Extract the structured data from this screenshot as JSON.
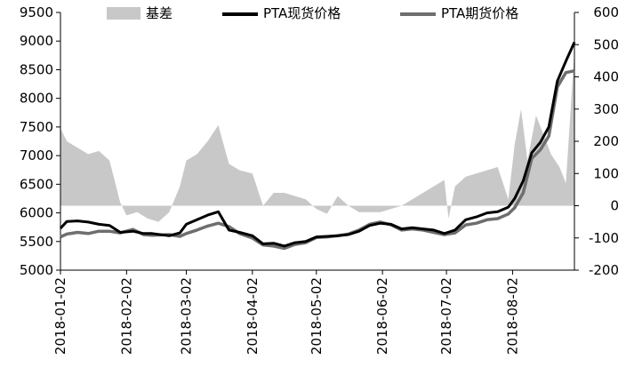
{
  "chart_data": {
    "type": "line",
    "title": "",
    "xlabel": "",
    "ylabel_left": "",
    "ylabel_right": "",
    "x_start": "2018-01-02",
    "x_end": "2018-08-31",
    "x_tick_labels": [
      "2018-01-02",
      "2018-02-02",
      "2018-03-02",
      "2018-04-02",
      "2018-05-02",
      "2018-06-02",
      "2018-07-02",
      "2018-08-02"
    ],
    "left_axis": {
      "ylim": [
        5000,
        9500
      ],
      "ticks": [
        5000,
        5500,
        6000,
        6500,
        7000,
        7500,
        8000,
        8500,
        9000,
        9500
      ]
    },
    "right_axis": {
      "ylim": [
        -200,
        600
      ],
      "ticks": [
        -200,
        -100,
        0,
        100,
        200,
        300,
        400,
        500,
        600
      ]
    },
    "legend": {
      "placement": "top",
      "entries": [
        "基差",
        "PTA现货价格",
        "PTA期货价格"
      ]
    },
    "grid": false,
    "colors": {
      "basis": "#c8c8c8",
      "spot": "#000000",
      "futures": "#6e6e6e"
    },
    "series": [
      {
        "name": "PTA现货价格",
        "axis": "left",
        "points": [
          [
            "2018-01-02",
            5730
          ],
          [
            "2018-01-05",
            5850
          ],
          [
            "2018-01-10",
            5860
          ],
          [
            "2018-01-15",
            5840
          ],
          [
            "2018-01-20",
            5800
          ],
          [
            "2018-01-25",
            5780
          ],
          [
            "2018-01-30",
            5660
          ],
          [
            "2018-02-05",
            5680
          ],
          [
            "2018-02-10",
            5640
          ],
          [
            "2018-02-14",
            5640
          ],
          [
            "2018-02-22",
            5600
          ],
          [
            "2018-02-27",
            5650
          ],
          [
            "2018-03-02",
            5800
          ],
          [
            "2018-03-07",
            5880
          ],
          [
            "2018-03-12",
            5960
          ],
          [
            "2018-03-17",
            6020
          ],
          [
            "2018-03-22",
            5700
          ],
          [
            "2018-03-27",
            5660
          ],
          [
            "2018-04-02",
            5600
          ],
          [
            "2018-04-07",
            5460
          ],
          [
            "2018-04-12",
            5470
          ],
          [
            "2018-04-17",
            5420
          ],
          [
            "2018-04-22",
            5480
          ],
          [
            "2018-04-27",
            5500
          ],
          [
            "2018-05-02",
            5580
          ],
          [
            "2018-05-07",
            5590
          ],
          [
            "2018-05-12",
            5600
          ],
          [
            "2018-05-17",
            5620
          ],
          [
            "2018-05-22",
            5680
          ],
          [
            "2018-05-27",
            5780
          ],
          [
            "2018-06-01",
            5820
          ],
          [
            "2018-06-06",
            5800
          ],
          [
            "2018-06-11",
            5720
          ],
          [
            "2018-06-16",
            5740
          ],
          [
            "2018-06-21",
            5720
          ],
          [
            "2018-06-26",
            5700
          ],
          [
            "2018-07-01",
            5640
          ],
          [
            "2018-07-06",
            5700
          ],
          [
            "2018-07-11",
            5880
          ],
          [
            "2018-07-16",
            5930
          ],
          [
            "2018-07-21",
            6000
          ],
          [
            "2018-07-26",
            6020
          ],
          [
            "2018-07-31",
            6100
          ],
          [
            "2018-08-03",
            6250
          ],
          [
            "2018-08-07",
            6560
          ],
          [
            "2018-08-11",
            7050
          ],
          [
            "2018-08-15",
            7230
          ],
          [
            "2018-08-19",
            7500
          ],
          [
            "2018-08-23",
            8300
          ],
          [
            "2018-08-27",
            8650
          ],
          [
            "2018-08-31",
            8980
          ]
        ]
      },
      {
        "name": "PTA期货价格",
        "axis": "left",
        "points": [
          [
            "2018-01-02",
            5580
          ],
          [
            "2018-01-05",
            5630
          ],
          [
            "2018-01-10",
            5660
          ],
          [
            "2018-01-15",
            5640
          ],
          [
            "2018-01-20",
            5680
          ],
          [
            "2018-01-25",
            5680
          ],
          [
            "2018-01-30",
            5650
          ],
          [
            "2018-02-05",
            5710
          ],
          [
            "2018-02-10",
            5620
          ],
          [
            "2018-02-14",
            5610
          ],
          [
            "2018-02-22",
            5620
          ],
          [
            "2018-02-27",
            5590
          ],
          [
            "2018-03-02",
            5640
          ],
          [
            "2018-03-07",
            5700
          ],
          [
            "2018-03-12",
            5770
          ],
          [
            "2018-03-17",
            5820
          ],
          [
            "2018-03-22",
            5760
          ],
          [
            "2018-03-27",
            5640
          ],
          [
            "2018-04-02",
            5560
          ],
          [
            "2018-04-07",
            5440
          ],
          [
            "2018-04-12",
            5420
          ],
          [
            "2018-04-17",
            5380
          ],
          [
            "2018-04-22",
            5450
          ],
          [
            "2018-04-27",
            5480
          ],
          [
            "2018-05-02",
            5570
          ],
          [
            "2018-05-07",
            5580
          ],
          [
            "2018-05-12",
            5600
          ],
          [
            "2018-05-17",
            5630
          ],
          [
            "2018-05-22",
            5700
          ],
          [
            "2018-05-27",
            5800
          ],
          [
            "2018-06-01",
            5840
          ],
          [
            "2018-06-06",
            5790
          ],
          [
            "2018-06-11",
            5700
          ],
          [
            "2018-06-16",
            5720
          ],
          [
            "2018-06-21",
            5700
          ],
          [
            "2018-06-26",
            5660
          ],
          [
            "2018-07-01",
            5620
          ],
          [
            "2018-07-06",
            5650
          ],
          [
            "2018-07-11",
            5790
          ],
          [
            "2018-07-16",
            5820
          ],
          [
            "2018-07-21",
            5880
          ],
          [
            "2018-07-26",
            5900
          ],
          [
            "2018-07-31",
            5980
          ],
          [
            "2018-08-03",
            6090
          ],
          [
            "2018-08-07",
            6350
          ],
          [
            "2018-08-11",
            6950
          ],
          [
            "2018-08-15",
            7100
          ],
          [
            "2018-08-19",
            7340
          ],
          [
            "2018-08-23",
            8200
          ],
          [
            "2018-08-27",
            8450
          ],
          [
            "2018-08-31",
            8480
          ]
        ]
      },
      {
        "name": "基差",
        "axis": "right",
        "points": [
          [
            "2018-01-02",
            240
          ],
          [
            "2018-01-05",
            200
          ],
          [
            "2018-01-10",
            180
          ],
          [
            "2018-01-15",
            160
          ],
          [
            "2018-01-20",
            170
          ],
          [
            "2018-01-25",
            140
          ],
          [
            "2018-01-30",
            10
          ],
          [
            "2018-02-02",
            -30
          ],
          [
            "2018-02-07",
            -20
          ],
          [
            "2018-02-12",
            -40
          ],
          [
            "2018-02-17",
            -50
          ],
          [
            "2018-02-22",
            -20
          ],
          [
            "2018-02-27",
            60
          ],
          [
            "2018-03-02",
            140
          ],
          [
            "2018-03-07",
            160
          ],
          [
            "2018-03-12",
            200
          ],
          [
            "2018-03-17",
            250
          ],
          [
            "2018-03-22",
            130
          ],
          [
            "2018-03-27",
            110
          ],
          [
            "2018-04-02",
            100
          ],
          [
            "2018-04-07",
            0
          ],
          [
            "2018-04-12",
            40
          ],
          [
            "2018-04-17",
            40
          ],
          [
            "2018-04-22",
            30
          ],
          [
            "2018-04-27",
            20
          ],
          [
            "2018-05-02",
            -10
          ],
          [
            "2018-05-07",
            -25
          ],
          [
            "2018-05-12",
            30
          ],
          [
            "2018-05-17",
            0
          ],
          [
            "2018-05-22",
            -20
          ],
          [
            "2018-05-27",
            -20
          ],
          [
            "2018-06-01",
            -20
          ],
          [
            "2018-06-06",
            -10
          ],
          [
            "2018-06-11",
            0
          ],
          [
            "2018-06-16",
            20
          ],
          [
            "2018-06-21",
            40
          ],
          [
            "2018-06-26",
            60
          ],
          [
            "2018-07-01",
            80
          ],
          [
            "2018-07-03",
            -40
          ],
          [
            "2018-07-06",
            60
          ],
          [
            "2018-07-11",
            90
          ],
          [
            "2018-07-16",
            100
          ],
          [
            "2018-07-21",
            110
          ],
          [
            "2018-07-26",
            120
          ],
          [
            "2018-07-31",
            20
          ],
          [
            "2018-08-03",
            190
          ],
          [
            "2018-08-06",
            300
          ],
          [
            "2018-08-09",
            140
          ],
          [
            "2018-08-13",
            280
          ],
          [
            "2018-08-16",
            230
          ],
          [
            "2018-08-20",
            160
          ],
          [
            "2018-08-24",
            120
          ],
          [
            "2018-08-27",
            70
          ],
          [
            "2018-08-31",
            480
          ]
        ]
      }
    ]
  }
}
